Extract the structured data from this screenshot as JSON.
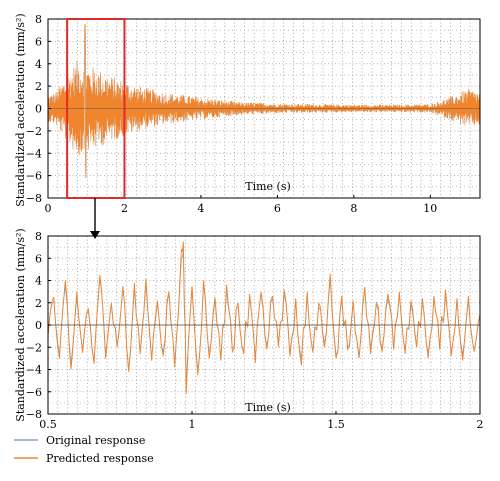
{
  "colors": {
    "original": "#8aa2c8",
    "predicted": "#f0852d",
    "highlight": "#e02b2b",
    "grid": "#9a9a9a",
    "axis": "#000000"
  },
  "legend": {
    "original": "Original response",
    "predicted": "Predicted response"
  },
  "chart_data": [
    {
      "type": "line",
      "xlabel": "Time (s)",
      "ylabel": "Standardized acceleration (mm/s²)",
      "xlim": [
        0,
        11.3
      ],
      "ylim": [
        -8,
        8
      ],
      "xticks": [
        0,
        2,
        4,
        6,
        8,
        10
      ],
      "yticks": [
        -8,
        -6,
        -4,
        -2,
        0,
        2,
        4,
        6,
        8
      ],
      "grid": true,
      "highlight_range": [
        0.5,
        2.0
      ],
      "envelope": {
        "t": [
          0,
          0.2,
          0.5,
          0.8,
          1.0,
          1.3,
          1.6,
          2.0,
          2.4,
          3.0,
          4.0,
          5.0,
          6.0,
          7.0,
          8.0,
          9.0,
          10.0,
          10.5,
          11.0,
          11.3
        ],
        "amplitude": [
          1.2,
          1.5,
          3.0,
          4.5,
          4.0,
          3.6,
          3.0,
          2.5,
          2.0,
          1.5,
          1.0,
          0.6,
          0.45,
          0.4,
          0.35,
          0.35,
          0.4,
          1.0,
          1.8,
          1.5
        ],
        "peak_max": 7.5,
        "peak_min": -6.2
      },
      "series": [
        {
          "name": "Original response"
        },
        {
          "name": "Predicted response"
        }
      ]
    },
    {
      "type": "line",
      "xlabel": "Time (s)",
      "ylabel": "Standardized acceleration (mm/s²)",
      "xlim": [
        0.5,
        2.0
      ],
      "ylim": [
        -8,
        8
      ],
      "xticks": [
        0.5,
        1,
        1.5,
        2
      ],
      "yticks": [
        -8,
        -6,
        -4,
        -2,
        0,
        2,
        4,
        6,
        8
      ],
      "grid": true,
      "series": [
        {
          "name": "Original response"
        },
        {
          "name": "Predicted response",
          "x": [
            0.5,
            0.52,
            0.54,
            0.56,
            0.58,
            0.6,
            0.62,
            0.64,
            0.66,
            0.68,
            0.7,
            0.72,
            0.74,
            0.76,
            0.78,
            0.8,
            0.82,
            0.84,
            0.86,
            0.88,
            0.9,
            0.92,
            0.94,
            0.96,
            0.97,
            0.98,
            1.0,
            1.02,
            1.04,
            1.06,
            1.08,
            1.1,
            1.12,
            1.14,
            1.16,
            1.18,
            1.2,
            1.22,
            1.24,
            1.26,
            1.28,
            1.3,
            1.32,
            1.34,
            1.36,
            1.38,
            1.4,
            1.42,
            1.44,
            1.46,
            1.48,
            1.5,
            1.52,
            1.54,
            1.56,
            1.58,
            1.6,
            1.62,
            1.64,
            1.66,
            1.68,
            1.7,
            1.72,
            1.74,
            1.76,
            1.78,
            1.8,
            1.82,
            1.84,
            1.86,
            1.88,
            1.9,
            1.92,
            1.94,
            1.96,
            1.98,
            2.0
          ],
          "y": [
            -1.0,
            2.5,
            -3.0,
            4.0,
            -4.0,
            3.0,
            -2.5,
            1.5,
            -3.5,
            4.5,
            -3.0,
            2.0,
            -2.0,
            3.5,
            -4.2,
            3.8,
            -2.6,
            4.2,
            -3.2,
            2.2,
            -2.8,
            3.0,
            -3.8,
            5.2,
            7.5,
            -6.2,
            3.5,
            -4.5,
            4.0,
            -3.0,
            2.5,
            -3.2,
            3.6,
            -2.4,
            2.0,
            -2.6,
            2.8,
            -3.4,
            3.0,
            -2.2,
            2.6,
            -2.0,
            3.2,
            -2.8,
            2.4,
            -3.6,
            3.0,
            -2.5,
            2.0,
            -2.0,
            4.6,
            -3.0,
            2.6,
            -2.2,
            2.2,
            -3.0,
            3.4,
            -2.6,
            2.0,
            -2.4,
            2.8,
            -2.2,
            3.0,
            -2.6,
            2.2,
            -2.0,
            2.4,
            -3.0,
            2.6,
            -2.2,
            3.2,
            -2.8,
            2.4,
            -3.2,
            2.6,
            -2.4,
            1.0
          ]
        }
      ]
    }
  ]
}
